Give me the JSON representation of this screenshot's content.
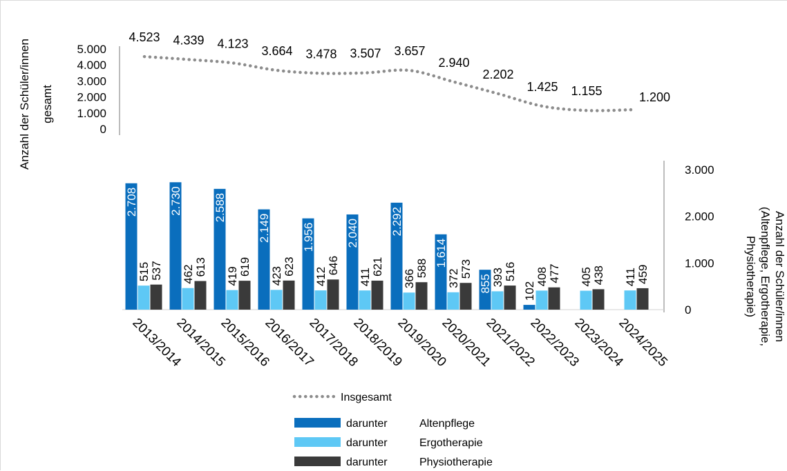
{
  "chart_data": {
    "type": "combo-line-bar",
    "categories": [
      "2013/2014",
      "2014/2015",
      "2015/2016",
      "2016/2017",
      "2017/2018",
      "2018/2019",
      "2019/2020",
      "2020/2021",
      "2021/2022",
      "2022/2023",
      "2023/2024",
      "2024/2025"
    ],
    "line": {
      "name": "Insgesamt",
      "values": [
        4523,
        4339,
        4123,
        3664,
        3478,
        3507,
        3657,
        2940,
        2202,
        1425,
        1155,
        1200
      ],
      "labels": [
        "4.523",
        "4.339",
        "4.123",
        "3.664",
        "3.478",
        "3.507",
        "3.657",
        "2.940",
        "2.202",
        "1.425",
        "1.155",
        "1.200"
      ],
      "style": "dotted",
      "color": "#8c8c8c",
      "ylim": [
        0,
        5000
      ],
      "yticks": [
        "0",
        "1.000",
        "2.000",
        "3.000",
        "4.000",
        "5.000"
      ],
      "ylabel": [
        "Anzahl der Schüler/innen",
        "gesamt"
      ]
    },
    "bars": {
      "ylim": [
        0,
        3000
      ],
      "yticks": [
        "0",
        "1.000",
        "2.000",
        "3.000"
      ],
      "ylabel": [
        "Anzahl der Schüler/innen",
        "(Altenpflege, Ergotherapie,",
        "Physiotherapie)"
      ],
      "series": [
        {
          "name": "darunter Altenpflege",
          "color": "#0a6ebd",
          "values": [
            2708,
            2730,
            2588,
            2149,
            1956,
            2040,
            2292,
            1614,
            855,
            102,
            null,
            null
          ],
          "labels": [
            "2.708",
            "2.730",
            "2.588",
            "2.149",
            "1.956",
            "2.040",
            "2.292",
            "1.614",
            "855",
            "102",
            "",
            ""
          ]
        },
        {
          "name": "darunter Ergotherapie",
          "color": "#5ec8f5",
          "values": [
            515,
            462,
            419,
            423,
            412,
            411,
            366,
            372,
            393,
            408,
            405,
            411
          ],
          "labels": [
            "515",
            "462",
            "419",
            "423",
            "412",
            "411",
            "366",
            "372",
            "393",
            "408",
            "405",
            "411"
          ]
        },
        {
          "name": "darunter Physiotherapie",
          "color": "#3a3a3a",
          "values": [
            537,
            613,
            619,
            623,
            646,
            621,
            588,
            573,
            516,
            477,
            438,
            459
          ],
          "labels": [
            "537",
            "613",
            "619",
            "623",
            "646",
            "621",
            "588",
            "573",
            "516",
            "477",
            "438",
            "459"
          ]
        }
      ]
    },
    "legend": {
      "placement": "bottom",
      "items": [
        {
          "kind": "line",
          "label": "Insgesamt"
        },
        {
          "kind": "bar",
          "series": 0,
          "word": "darunter",
          "label": "Altenpflege"
        },
        {
          "kind": "bar",
          "series": 1,
          "word": "darunter",
          "label": "Ergotherapie"
        },
        {
          "kind": "bar",
          "series": 2,
          "word": "darunter",
          "label": "Physiotherapie"
        }
      ]
    }
  }
}
